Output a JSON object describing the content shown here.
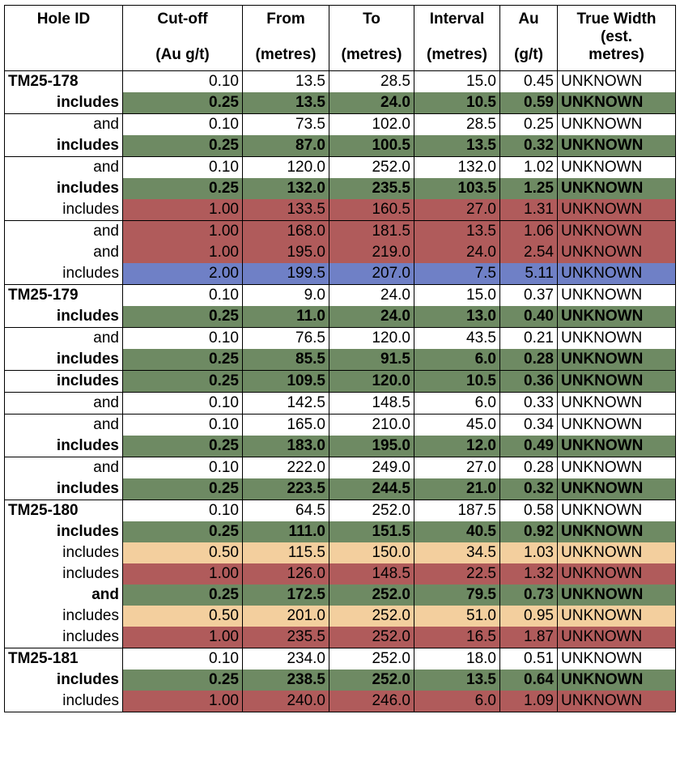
{
  "headers": [
    {
      "label": "Hole ID",
      "line2": "",
      "unit": ""
    },
    {
      "label": "Cut-off",
      "line2": "",
      "unit": "(Au g/t)"
    },
    {
      "label": "From",
      "line2": "",
      "unit": "(metres)"
    },
    {
      "label": "To",
      "line2": "",
      "unit": "(metres)"
    },
    {
      "label": "Interval",
      "line2": "",
      "unit": "(metres)"
    },
    {
      "label": "Au",
      "line2": "",
      "unit": "(g/t)"
    },
    {
      "label": "True Width",
      "line2": "(est.",
      "unit": "metres)"
    }
  ],
  "colors": {
    "green": "#6e8a63",
    "red": "#b05b5b",
    "blue": "#6f80c6",
    "peach": "#f3cf9e"
  },
  "rows": [
    {
      "hole": "TM25-178",
      "cutoff": "0.10",
      "from": "13.5",
      "to": "28.5",
      "interval": "15.0",
      "au": "0.45",
      "tw": "UNKNOWN"
    },
    {
      "hole": "includes",
      "cutoff": "0.25",
      "from": "13.5",
      "to": "24.0",
      "interval": "10.5",
      "au": "0.59",
      "tw": "UNKNOWN"
    },
    {
      "hole": "and",
      "cutoff": "0.10",
      "from": "73.5",
      "to": "102.0",
      "interval": "28.5",
      "au": "0.25",
      "tw": "UNKNOWN"
    },
    {
      "hole": "includes",
      "cutoff": "0.25",
      "from": "87.0",
      "to": "100.5",
      "interval": "13.5",
      "au": "0.32",
      "tw": "UNKNOWN"
    },
    {
      "hole": "and",
      "cutoff": "0.10",
      "from": "120.0",
      "to": "252.0",
      "interval": "132.0",
      "au": "1.02",
      "tw": "UNKNOWN"
    },
    {
      "hole": "includes",
      "cutoff": "0.25",
      "from": "132.0",
      "to": "235.5",
      "interval": "103.5",
      "au": "1.25",
      "tw": "UNKNOWN"
    },
    {
      "hole": "includes",
      "cutoff": "1.00",
      "from": "133.5",
      "to": "160.5",
      "interval": "27.0",
      "au": "1.31",
      "tw": "UNKNOWN"
    },
    {
      "hole": "and",
      "cutoff": "1.00",
      "from": "168.0",
      "to": "181.5",
      "interval": "13.5",
      "au": "1.06",
      "tw": "UNKNOWN"
    },
    {
      "hole": "and",
      "cutoff": "1.00",
      "from": "195.0",
      "to": "219.0",
      "interval": "24.0",
      "au": "2.54",
      "tw": "UNKNOWN"
    },
    {
      "hole": "includes",
      "cutoff": "2.00",
      "from": "199.5",
      "to": "207.0",
      "interval": "7.5",
      "au": "5.11",
      "tw": "UNKNOWN"
    },
    {
      "hole": "TM25-179",
      "cutoff": "0.10",
      "from": "9.0",
      "to": "24.0",
      "interval": "15.0",
      "au": "0.37",
      "tw": "UNKNOWN"
    },
    {
      "hole": "includes",
      "cutoff": "0.25",
      "from": "11.0",
      "to": "24.0",
      "interval": "13.0",
      "au": "0.40",
      "tw": "UNKNOWN"
    },
    {
      "hole": "and",
      "cutoff": "0.10",
      "from": "76.5",
      "to": "120.0",
      "interval": "43.5",
      "au": "0.21",
      "tw": "UNKNOWN"
    },
    {
      "hole": "includes",
      "cutoff": "0.25",
      "from": "85.5",
      "to": "91.5",
      "interval": "6.0",
      "au": "0.28",
      "tw": "UNKNOWN"
    },
    {
      "hole": "includes",
      "cutoff": "0.25",
      "from": "109.5",
      "to": "120.0",
      "interval": "10.5",
      "au": "0.36",
      "tw": "UNKNOWN"
    },
    {
      "hole": "and",
      "cutoff": "0.10",
      "from": "142.5",
      "to": "148.5",
      "interval": "6.0",
      "au": "0.33",
      "tw": "UNKNOWN"
    },
    {
      "hole": "and",
      "cutoff": "0.10",
      "from": "165.0",
      "to": "210.0",
      "interval": "45.0",
      "au": "0.34",
      "tw": "UNKNOWN"
    },
    {
      "hole": "includes",
      "cutoff": "0.25",
      "from": "183.0",
      "to": "195.0",
      "interval": "12.0",
      "au": "0.49",
      "tw": "UNKNOWN"
    },
    {
      "hole": "and",
      "cutoff": "0.10",
      "from": "222.0",
      "to": "249.0",
      "interval": "27.0",
      "au": "0.28",
      "tw": "UNKNOWN"
    },
    {
      "hole": "includes",
      "cutoff": "0.25",
      "from": "223.5",
      "to": "244.5",
      "interval": "21.0",
      "au": "0.32",
      "tw": "UNKNOWN"
    },
    {
      "hole": "TM25-180",
      "cutoff": "0.10",
      "from": "64.5",
      "to": "252.0",
      "interval": "187.5",
      "au": "0.58",
      "tw": "UNKNOWN"
    },
    {
      "hole": "includes",
      "cutoff": "0.25",
      "from": "111.0",
      "to": "151.5",
      "interval": "40.5",
      "au": "0.92",
      "tw": "UNKNOWN"
    },
    {
      "hole": "includes",
      "cutoff": "0.50",
      "from": "115.5",
      "to": "150.0",
      "interval": "34.5",
      "au": "1.03",
      "tw": "UNKNOWN"
    },
    {
      "hole": "includes",
      "cutoff": "1.00",
      "from": "126.0",
      "to": "148.5",
      "interval": "22.5",
      "au": "1.32",
      "tw": "UNKNOWN"
    },
    {
      "hole": "and",
      "cutoff": "0.25",
      "from": "172.5",
      "to": "252.0",
      "interval": "79.5",
      "au": "0.73",
      "tw": "UNKNOWN"
    },
    {
      "hole": "includes",
      "cutoff": "0.50",
      "from": "201.0",
      "to": "252.0",
      "interval": "51.0",
      "au": "0.95",
      "tw": "UNKNOWN"
    },
    {
      "hole": "includes",
      "cutoff": "1.00",
      "from": "235.5",
      "to": "252.0",
      "interval": "16.5",
      "au": "1.87",
      "tw": "UNKNOWN"
    },
    {
      "hole": "TM25-181",
      "cutoff": "0.10",
      "from": "234.0",
      "to": "252.0",
      "interval": "18.0",
      "au": "0.51",
      "tw": "UNKNOWN"
    },
    {
      "hole": "includes",
      "cutoff": "0.25",
      "from": "238.5",
      "to": "252.0",
      "interval": "13.5",
      "au": "0.64",
      "tw": "UNKNOWN"
    },
    {
      "hole": "includes",
      "cutoff": "1.00",
      "from": "240.0",
      "to": "246.0",
      "interval": "6.0",
      "au": "1.09",
      "tw": "UNKNOWN"
    }
  ]
}
